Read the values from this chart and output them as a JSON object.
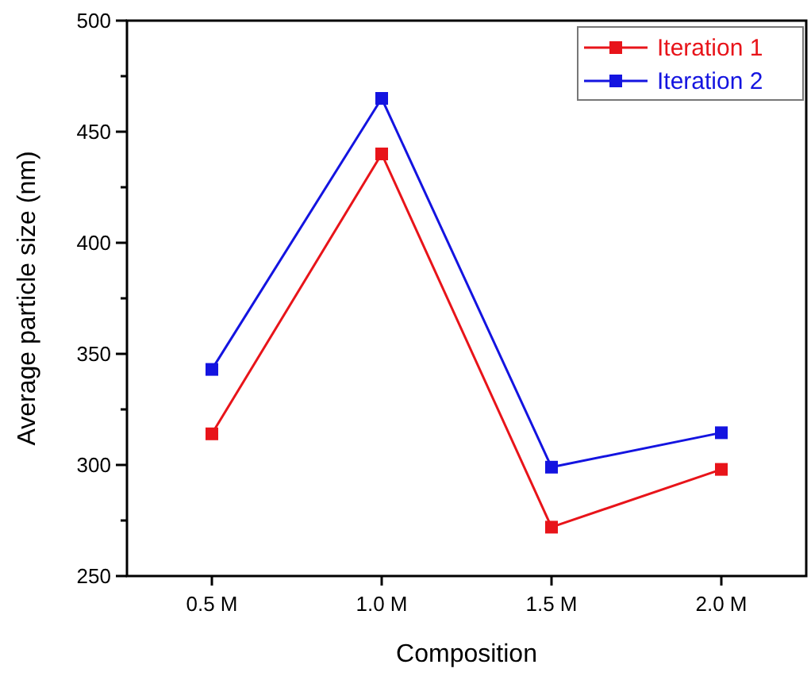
{
  "chart_data": {
    "type": "line",
    "xlabel": "Composition",
    "ylabel": "Average particle size (nm)",
    "categories": [
      "0.5 M",
      "1.0 M",
      "1.5 M",
      "2.0 M"
    ],
    "series": [
      {
        "name": "Iteration 1",
        "color": "#e8141a",
        "values": [
          314,
          440,
          272,
          298
        ]
      },
      {
        "name": "Iteration 2",
        "color": "#1414e0",
        "values": [
          343,
          465,
          299,
          314.5
        ]
      }
    ],
    "ylim": [
      250,
      500
    ],
    "yticks": [
      250,
      {
        "value": 275,
        "label": null
      },
      300,
      {
        "value": 325,
        "label": null
      },
      350,
      {
        "value": 375,
        "label": null
      },
      400,
      {
        "value": 425,
        "label": null
      },
      450,
      {
        "value": 475,
        "label": null
      },
      500
    ],
    "grid": false,
    "legend": "top right",
    "marker": "square",
    "line_style": "solid"
  }
}
